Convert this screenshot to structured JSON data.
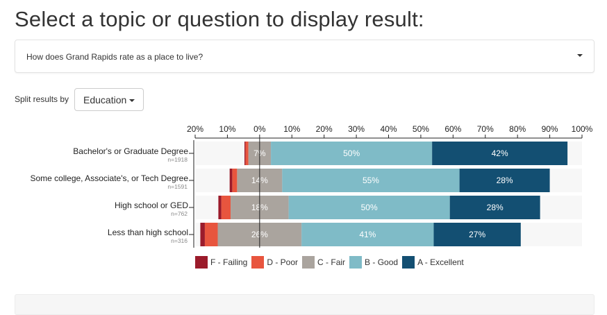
{
  "page": {
    "title": "Select a topic or question to display result:"
  },
  "question_select": {
    "value": "How does Grand Rapids rate as a place to live?"
  },
  "split": {
    "label": "Split results by",
    "value": "Education"
  },
  "colors": {
    "F": "#9b1b2b",
    "D": "#e8553e",
    "C": "#aaa49e",
    "B": "#7fbbc7",
    "A": "#134f72",
    "row_background": "#f7f7f7"
  },
  "chart_data": {
    "type": "bar",
    "orientation": "horizontal",
    "stacked": "diverging",
    "xlim": [
      -20,
      100
    ],
    "x_ticks": [
      "20%",
      "10%",
      "0%",
      "10%",
      "20%",
      "30%",
      "40%",
      "50%",
      "60%",
      "70%",
      "80%",
      "90%",
      "100%"
    ],
    "legend_position": "bottom-left",
    "grid": false,
    "categories": [
      "Bachelor's or Graduate Degree",
      "Some college, Associate's, or Tech Degree",
      "High school or GED",
      "Less than high school"
    ],
    "n_labels": [
      "n=1918",
      "n=1591",
      "n=762",
      "n=316"
    ],
    "series": [
      {
        "name": "F - Failing",
        "key": "F",
        "values": [
          0.3,
          0.8,
          0.9,
          1.4
        ]
      },
      {
        "name": "D - Poor",
        "key": "D",
        "values": [
          0.9,
          1.5,
          2.9,
          4.0
        ]
      },
      {
        "name": "C - Fair",
        "key": "C",
        "values": [
          7,
          14,
          18,
          26
        ]
      },
      {
        "name": "B - Good",
        "key": "B",
        "values": [
          50,
          55,
          50,
          41
        ]
      },
      {
        "name": "A - Excellent",
        "key": "A",
        "values": [
          42,
          28,
          28,
          27
        ]
      }
    ],
    "data_labels": [
      [
        "7%",
        "50%",
        "42%"
      ],
      [
        "14%",
        "55%",
        "28%"
      ],
      [
        "18%",
        "50%",
        "28%"
      ],
      [
        "26%",
        "41%",
        "27%"
      ]
    ]
  }
}
